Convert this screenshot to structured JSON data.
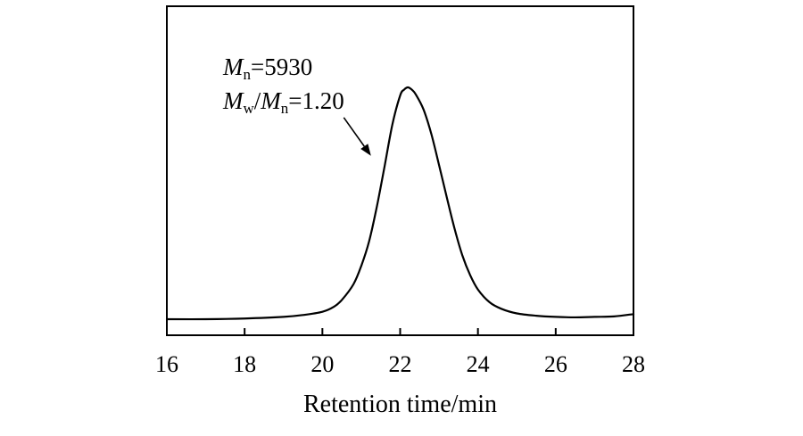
{
  "chart_data": {
    "type": "line",
    "title": "",
    "xlabel": "Retention time/min",
    "ylabel": "",
    "xlim": [
      16,
      28
    ],
    "ylim": [
      0,
      1
    ],
    "x_ticks": [
      16,
      18,
      20,
      22,
      24,
      26,
      28
    ],
    "x_tick_labels": [
      "16",
      "18",
      "20",
      "22",
      "24",
      "26",
      "28"
    ],
    "y_ticks_visible": false,
    "grid": false,
    "legend": "none",
    "line_color": "#000000",
    "series": [
      {
        "x": [
          16.0,
          17.0,
          18.0,
          19.0,
          19.5,
          20.0,
          20.3,
          20.5,
          20.8,
          21.0,
          21.2,
          21.4,
          21.6,
          21.8,
          22.0,
          22.1,
          22.2,
          22.3,
          22.4,
          22.6,
          22.8,
          23.0,
          23.2,
          23.4,
          23.6,
          23.8,
          24.0,
          24.3,
          24.6,
          25.0,
          25.5,
          26.0,
          26.5,
          27.0,
          27.5,
          28.0
        ],
        "y": [
          0.0,
          0.0,
          0.003,
          0.01,
          0.018,
          0.032,
          0.054,
          0.083,
          0.151,
          0.23,
          0.335,
          0.485,
          0.66,
          0.84,
          0.965,
          0.99,
          1.0,
          0.99,
          0.97,
          0.905,
          0.8,
          0.665,
          0.525,
          0.39,
          0.275,
          0.19,
          0.128,
          0.073,
          0.045,
          0.025,
          0.015,
          0.01,
          0.008,
          0.01,
          0.012,
          0.022
        ]
      }
    ],
    "annotation": {
      "line1": {
        "var": "M",
        "sub": "n",
        "rest": "=5930"
      },
      "line2": {
        "var1": "M",
        "sub1": "w",
        "slash": "/",
        "var2": "M",
        "sub2": "n",
        "rest": "=1.20"
      },
      "arrow_from": {
        "x": 20.55,
        "y": 0.87
      },
      "arrow_to": {
        "x": 21.25,
        "y": 0.705
      }
    }
  }
}
